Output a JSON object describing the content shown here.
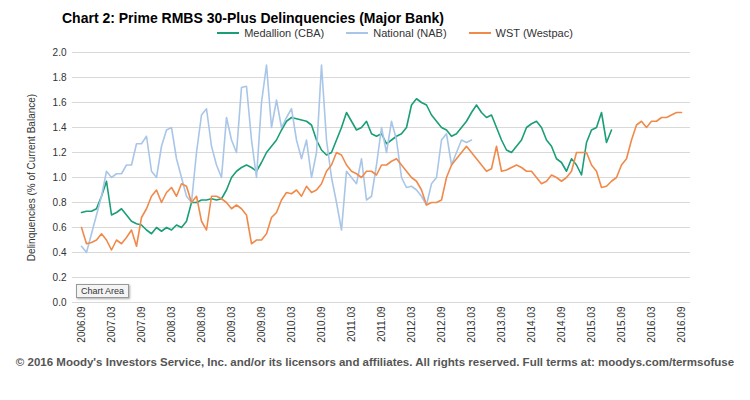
{
  "chart_data": {
    "type": "line",
    "title": "Chart 2: Prime RMBS 30-Plus Delinquencies (Major Bank)",
    "ylabel": "Delinquencies (% of Current Balance)",
    "annotation": "Chart Area",
    "footer": "© 2016 Moody's Investors Service, Inc. and/or its licensors and affiliates. All rights reserved. Full terms at: moodys.com/termsofuse",
    "legend": "top",
    "grid": true,
    "ylim": [
      0,
      2
    ],
    "yticks": [
      {
        "value": 0,
        "label": "0.0"
      },
      0.2,
      0.4,
      0.6,
      0.8,
      {
        "value": 1,
        "label": "1.0"
      },
      1.2,
      1.4,
      1.6,
      1.8,
      {
        "value": 2,
        "label": "2.0"
      }
    ],
    "categories": [
      "2006.09",
      null,
      null,
      null,
      null,
      null,
      "2007.03",
      null,
      null,
      null,
      null,
      null,
      "2007.09",
      null,
      null,
      null,
      null,
      null,
      "2008.03",
      null,
      null,
      null,
      null,
      null,
      "2008.09",
      null,
      null,
      null,
      null,
      null,
      "2009.03",
      null,
      null,
      null,
      null,
      null,
      "2009.09",
      null,
      null,
      null,
      null,
      null,
      "2010.03",
      null,
      null,
      null,
      null,
      null,
      "2010.09",
      null,
      null,
      null,
      null,
      null,
      "2011.03",
      null,
      null,
      null,
      null,
      null,
      "2011.09",
      null,
      null,
      null,
      null,
      null,
      "2012.03",
      null,
      null,
      null,
      null,
      null,
      "2012.09",
      null,
      null,
      null,
      null,
      null,
      "2013.03",
      null,
      null,
      null,
      null,
      null,
      "2013.09",
      null,
      null,
      null,
      null,
      null,
      "2014.03",
      null,
      null,
      null,
      null,
      null,
      "2014.09",
      null,
      null,
      null,
      null,
      null,
      "2015.03",
      null,
      null,
      null,
      null,
      null,
      "2015.09",
      null,
      null,
      null,
      null,
      null,
      "2016.03",
      null,
      null,
      null,
      null,
      null,
      "2016.09"
    ],
    "series": [
      {
        "name": "Medallion (CBA)",
        "color": "#1a9e77",
        "values": [
          0.72,
          0.73,
          0.73,
          0.75,
          0.85,
          0.97,
          0.7,
          0.72,
          0.75,
          0.7,
          0.65,
          0.63,
          0.62,
          0.58,
          0.55,
          0.6,
          0.57,
          0.6,
          0.58,
          0.62,
          0.6,
          0.65,
          0.8,
          0.8,
          0.82,
          0.82,
          0.83,
          0.82,
          0.83,
          0.9,
          1.0,
          1.05,
          1.08,
          1.1,
          1.08,
          1.05,
          1.12,
          1.2,
          1.25,
          1.3,
          1.38,
          1.45,
          1.48,
          1.47,
          1.46,
          1.45,
          1.42,
          1.3,
          1.22,
          1.18,
          1.2,
          1.3,
          1.4,
          1.52,
          1.45,
          1.38,
          1.4,
          1.45,
          1.35,
          1.33,
          1.35,
          1.27,
          1.3,
          1.33,
          1.35,
          1.4,
          1.58,
          1.63,
          1.6,
          1.58,
          1.5,
          1.45,
          1.4,
          1.38,
          1.33,
          1.35,
          1.4,
          1.45,
          1.52,
          1.58,
          1.52,
          1.48,
          1.5,
          1.4,
          1.3,
          1.22,
          1.2,
          1.25,
          1.3,
          1.4,
          1.43,
          1.45,
          1.4,
          1.3,
          1.25,
          1.15,
          1.12,
          1.05,
          1.15,
          1.1,
          1.02,
          1.28,
          1.38,
          1.4,
          1.52,
          1.28,
          1.38,
          null,
          null,
          null,
          null,
          null,
          null,
          null,
          null,
          null,
          null,
          null,
          null,
          null,
          null
        ]
      },
      {
        "name": "National (NAB)",
        "color": "#a9c6e8",
        "values": [
          0.45,
          0.4,
          0.55,
          0.7,
          0.85,
          1.05,
          1.0,
          1.03,
          1.03,
          1.1,
          1.1,
          1.27,
          1.27,
          1.33,
          1.05,
          1.0,
          1.25,
          1.38,
          1.4,
          1.15,
          1.0,
          0.85,
          0.8,
          1.2,
          1.5,
          1.55,
          1.25,
          1.1,
          1.0,
          1.48,
          1.3,
          1.2,
          1.72,
          1.73,
          1.3,
          1.0,
          1.6,
          1.9,
          1.4,
          1.62,
          1.4,
          1.48,
          1.55,
          1.3,
          1.15,
          1.3,
          1.0,
          1.2,
          1.9,
          1.3,
          1.0,
          0.8,
          0.58,
          1.05,
          1.0,
          0.95,
          1.15,
          0.82,
          0.85,
          1.1,
          1.4,
          1.2,
          1.45,
          1.3,
          1.0,
          0.92,
          0.93,
          0.9,
          0.85,
          0.78,
          0.95,
          1.0,
          1.3,
          1.35,
          1.1,
          1.2,
          1.3,
          1.28,
          1.3,
          null,
          null,
          null,
          null,
          null,
          null,
          null,
          null,
          null,
          null,
          null,
          null,
          null,
          null,
          null,
          null,
          null,
          null,
          null,
          null,
          null,
          null,
          null,
          null,
          null,
          null,
          null,
          null,
          null,
          null,
          null,
          null,
          null,
          null,
          null,
          null,
          null,
          null,
          null,
          null,
          null,
          null
        ]
      },
      {
        "name": "WST (Westpac)",
        "color": "#f08a4b",
        "values": [
          0.6,
          0.47,
          0.48,
          0.5,
          0.55,
          0.5,
          0.42,
          0.5,
          0.47,
          0.52,
          0.58,
          0.45,
          0.68,
          0.75,
          0.85,
          0.9,
          0.8,
          0.88,
          0.92,
          0.85,
          0.95,
          0.93,
          0.8,
          0.85,
          0.65,
          0.58,
          0.85,
          0.85,
          0.83,
          0.8,
          0.75,
          0.78,
          0.75,
          0.7,
          0.47,
          0.5,
          0.5,
          0.55,
          0.68,
          0.72,
          0.82,
          0.88,
          0.87,
          0.9,
          0.85,
          0.93,
          0.88,
          0.9,
          0.95,
          1.05,
          1.1,
          1.2,
          1.18,
          1.1,
          1.05,
          1.03,
          1.0,
          1.05,
          1.05,
          1.02,
          1.1,
          1.1,
          1.13,
          1.15,
          1.1,
          1.05,
          1.0,
          0.97,
          0.9,
          0.78,
          0.8,
          0.8,
          0.82,
          1.0,
          1.1,
          1.15,
          1.2,
          1.25,
          1.2,
          1.15,
          1.1,
          1.05,
          1.07,
          1.25,
          1.05,
          1.06,
          1.08,
          1.1,
          1.08,
          1.05,
          1.05,
          1.0,
          0.95,
          0.97,
          1.02,
          1.0,
          0.97,
          1.0,
          1.05,
          1.2,
          1.2,
          1.2,
          1.1,
          1.05,
          0.92,
          0.93,
          0.97,
          1.0,
          1.1,
          1.15,
          1.3,
          1.42,
          1.45,
          1.4,
          1.45,
          1.45,
          1.48,
          1.48,
          1.5,
          1.52,
          1.52
        ]
      }
    ]
  }
}
